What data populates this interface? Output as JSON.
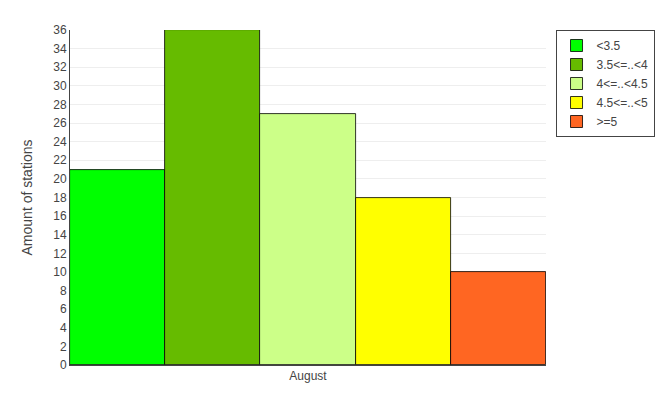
{
  "chart_data": {
    "type": "bar",
    "categories": [
      "August"
    ],
    "series": [
      {
        "name": "<3.5",
        "color": "#00FF00",
        "values": [
          21
        ]
      },
      {
        "name": "3.5<=..<4",
        "color": "#66BB00",
        "values": [
          36
        ]
      },
      {
        "name": "4<=..<4.5",
        "color": "#CCFF88",
        "values": [
          27
        ]
      },
      {
        "name": "4.5<=..<5",
        "color": "#FFFF00",
        "values": [
          18
        ]
      },
      {
        "name": ">=5",
        "color": "#FF6622",
        "values": [
          10
        ]
      }
    ],
    "ylabel": "Amount of stations",
    "ylim": [
      0,
      36
    ],
    "yticks": [
      0,
      2,
      4,
      6,
      8,
      10,
      12,
      14,
      16,
      18,
      20,
      22,
      24,
      26,
      28,
      30,
      32,
      34,
      36
    ],
    "grid": true,
    "legend": "upper right"
  }
}
